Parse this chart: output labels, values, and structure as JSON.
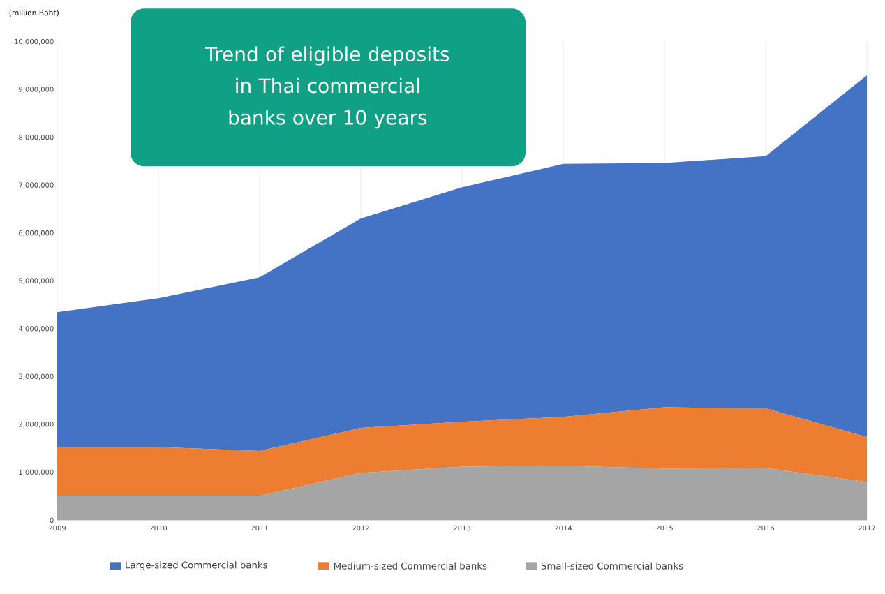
{
  "chart_data": {
    "type": "area",
    "title": "Trend of eligible deposits in Thai commercial banks over 10 years",
    "ylabel": "(million Baht)",
    "x": [
      2009,
      2010,
      2011,
      2012,
      2013,
      2014,
      2015,
      2016,
      2017
    ],
    "stacked": true,
    "series": [
      {
        "name": "Small-sized Commercial banks",
        "color": "#a5a5a5",
        "values": [
          510000,
          510000,
          510000,
          990000,
          1120000,
          1140000,
          1080000,
          1090000,
          800000
        ]
      },
      {
        "name": "Medium-sized Commercial banks",
        "color": "#ed7d31",
        "values": [
          1020000,
          1020000,
          940000,
          940000,
          940000,
          1020000,
          1280000,
          1250000,
          940000
        ]
      },
      {
        "name": "Large-sized Commercial banks",
        "color": "#4472c4",
        "values": [
          2820000,
          3110000,
          3630000,
          4380000,
          4900000,
          5290000,
          5110000,
          5270000,
          7560000
        ]
      }
    ],
    "xlim": [
      2009,
      2017
    ],
    "xticks": [
      2009,
      2010,
      2011,
      2012,
      2013,
      2014,
      2015,
      2016,
      2017
    ],
    "ylim": [
      0,
      10000000
    ],
    "yticks": [
      0,
      {
        "value": 1000000,
        "label": "1,000,000"
      },
      {
        "value": 2000000,
        "label": "2,000,000"
      },
      {
        "value": 3000000,
        "label": "3,000,000"
      },
      {
        "value": 4000000,
        "label": "4,000,000"
      },
      {
        "value": 5000000,
        "label": "5,000,000"
      },
      {
        "value": 6000000,
        "label": "6,000,000"
      },
      {
        "value": 7000000,
        "label": "7,000,000"
      },
      {
        "value": 8000000,
        "label": "8,000,000"
      },
      {
        "value": 9000000,
        "label": "9,000,000"
      },
      {
        "value": 10000000,
        "label": "10,000,000"
      }
    ],
    "grid": "x",
    "legend": "bottom"
  }
}
